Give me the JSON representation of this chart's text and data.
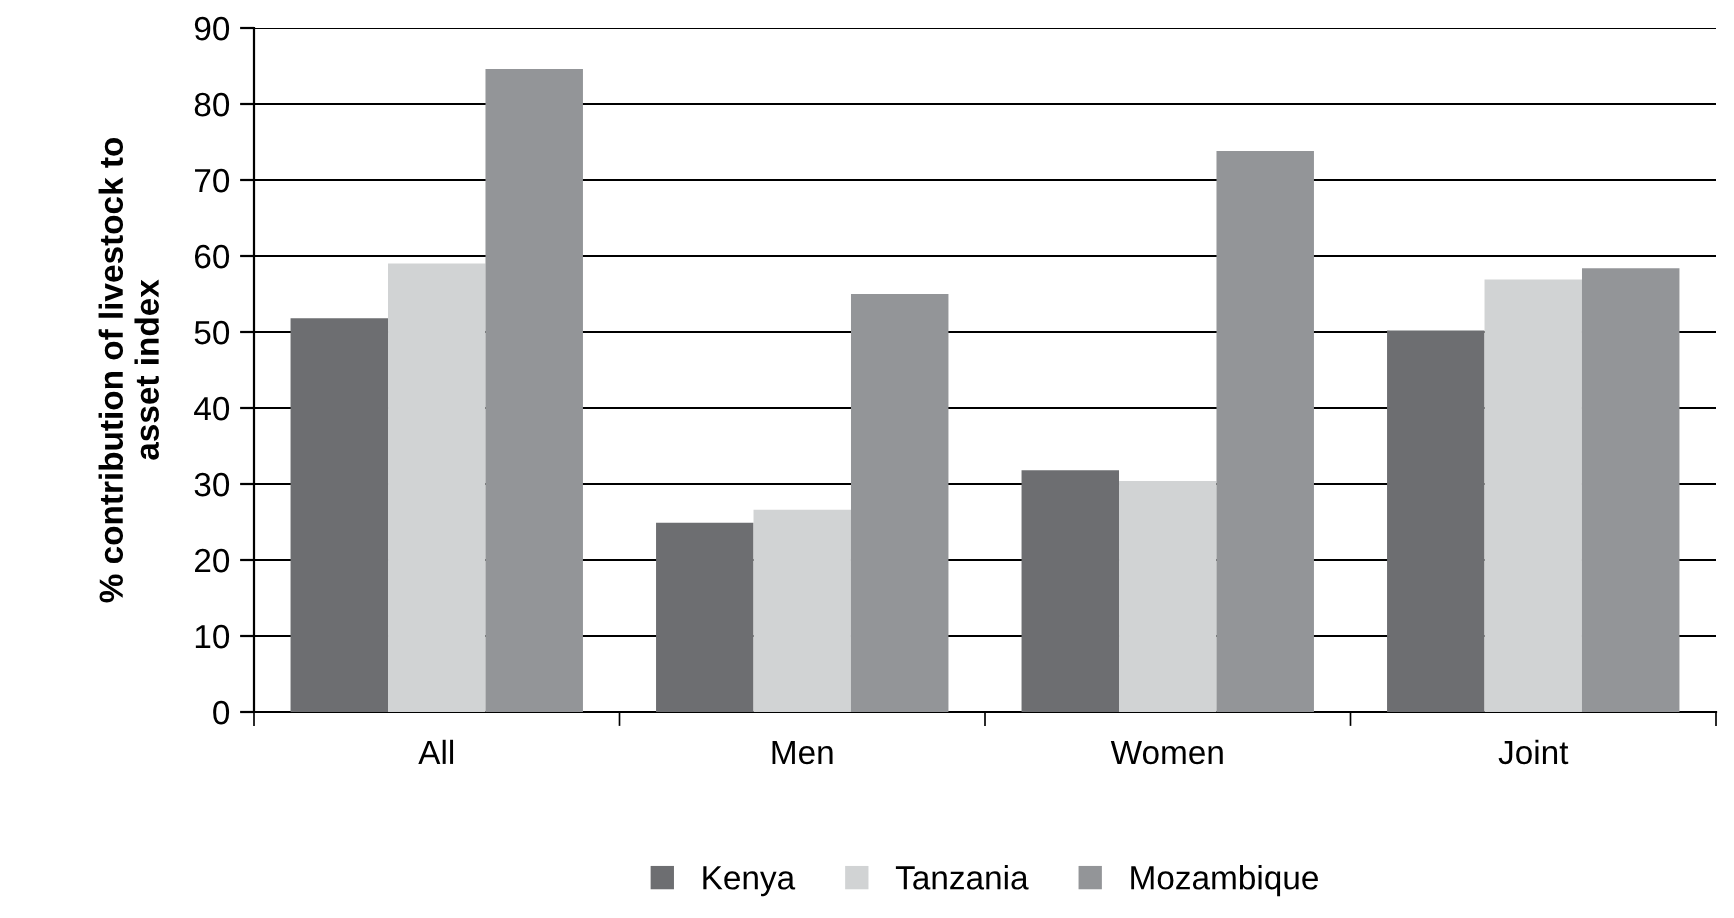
{
  "chart_data": {
    "type": "bar",
    "ylabel": "% contribution of livestock to\nasset index",
    "categories": [
      "All",
      "Men",
      "Women",
      "Joint"
    ],
    "series": [
      {
        "name": "Kenya",
        "color": "#6d6e71",
        "values": [
          51.8,
          24.9,
          31.8,
          50.2
        ]
      },
      {
        "name": "Tanzania",
        "color": "#d1d3d4",
        "values": [
          59,
          26.6,
          30.4,
          56.9
        ]
      },
      {
        "name": "Mozambique",
        "color": "#939598",
        "values": [
          84.6,
          55,
          73.8,
          58.4
        ]
      }
    ],
    "ylim": [
      0,
      90
    ],
    "yticks": [
      0,
      10,
      20,
      30,
      40,
      50,
      60,
      70,
      80,
      90
    ],
    "grid": "y",
    "legend": "bottom"
  }
}
